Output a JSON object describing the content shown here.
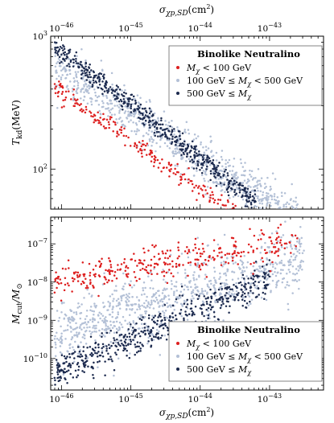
{
  "chart_data": [
    {
      "type": "scatter",
      "panel": "top",
      "title": "",
      "xlabel": "σ_χp,SD(cm²)",
      "xlabel_parts": {
        "main": "σ",
        "sub": "χp,SD",
        "unit": "(cm",
        "sup": "2",
        "close": ")"
      },
      "ylabel": "T_kd(MeV)",
      "ylabel_parts": {
        "main": "T",
        "sub": "kd",
        "unit": "(MeV)"
      },
      "x_scale": "log",
      "y_scale": "log",
      "xlim": [
        7e-47,
        6e-43
      ],
      "ylim": [
        50,
        1000
      ],
      "x_ticks": [
        {
          "value": 1e-46,
          "base": "10",
          "exp": "−46"
        },
        {
          "value": 1e-45,
          "base": "10",
          "exp": "−45"
        },
        {
          "value": 1e-44,
          "base": "10",
          "exp": "−44"
        },
        {
          "value": 1e-43,
          "base": "10",
          "exp": "−43"
        }
      ],
      "y_ticks": [
        {
          "value": 100,
          "base": "10",
          "exp": "2"
        },
        {
          "value": 1000,
          "base": "10",
          "exp": "3"
        }
      ],
      "x_axis_position": "top",
      "legend": {
        "title": "Binolike Neutralino",
        "position": "top-right",
        "entries": [
          {
            "label": "M_χ < 100 GeV",
            "parts": [
              "M",
              "χ",
              " < 100 GeV"
            ],
            "color": "#dd1f1f"
          },
          {
            "label": "100 GeV ≤ M_χ < 500 GeV",
            "parts": [
              "100 GeV ≤ M",
              "χ",
              " < 500 GeV"
            ],
            "color": "#b3c0d6"
          },
          {
            "label": "500 GeV ≤ M_χ",
            "parts": [
              "500 GeV ≤ M",
              "χ",
              ""
            ],
            "color": "#1d2b4f"
          }
        ]
      },
      "series": [
        {
          "name": "M_χ < 100 GeV",
          "color": "#dd1f1f",
          "band": {
            "x_log": [
              -46.1,
              -42.9
            ],
            "center_log": [
              2.62,
              1.45
            ],
            "width_log": 0.07,
            "n": 260
          }
        },
        {
          "name": "100 GeV ≤ M_χ < 500 GeV",
          "color": "#b3c0d6",
          "band": {
            "x_log": [
              -46.1,
              -42.4
            ],
            "center_log": [
              2.77,
              1.55
            ],
            "width_log": 0.17,
            "n": 900
          }
        },
        {
          "name": "500 GeV ≤ M_χ",
          "color": "#1d2b4f",
          "band": {
            "x_log": [
              -46.1,
              -43.2
            ],
            "center_log": [
              2.92,
              1.75
            ],
            "width_log": 0.08,
            "n": 520
          }
        }
      ]
    },
    {
      "type": "scatter",
      "panel": "bottom",
      "title": "",
      "xlabel": "σ_χp,SD(cm²)",
      "xlabel_parts": {
        "main": "σ",
        "sub": "χp,SD",
        "unit": "(cm",
        "sup": "2",
        "close": ")"
      },
      "ylabel": "M_cut/M_⊙",
      "ylabel_parts": {
        "main": "M",
        "sub": "cut",
        "slash": "/M",
        "sub2": "⊙"
      },
      "x_scale": "log",
      "y_scale": "log",
      "xlim": [
        7e-47,
        6e-43
      ],
      "ylim": [
        1.5e-11,
        5e-07
      ],
      "x_ticks": [
        {
          "value": 1e-46,
          "base": "10",
          "exp": "−46"
        },
        {
          "value": 1e-45,
          "base": "10",
          "exp": "−45"
        },
        {
          "value": 1e-44,
          "base": "10",
          "exp": "−44"
        },
        {
          "value": 1e-43,
          "base": "10",
          "exp": "−43"
        }
      ],
      "y_ticks": [
        {
          "value": 1e-10,
          "base": "10",
          "exp": "−10"
        },
        {
          "value": 1e-09,
          "base": "10",
          "exp": "−9"
        },
        {
          "value": 1e-08,
          "base": "10",
          "exp": "−8"
        },
        {
          "value": 1e-07,
          "base": "10",
          "exp": "−7"
        }
      ],
      "x_axis_position": "bottom",
      "legend": {
        "title": "Binolike Neutralino",
        "position": "bottom-right",
        "entries": [
          {
            "label": "M_χ < 100 GeV",
            "parts": [
              "M",
              "χ",
              " < 100 GeV"
            ],
            "color": "#dd1f1f"
          },
          {
            "label": "100 GeV ≤ M_χ < 500 GeV",
            "parts": [
              "100 GeV ≤ M",
              "χ",
              " < 500 GeV"
            ],
            "color": "#b3c0d6"
          },
          {
            "label": "500 GeV ≤ M_χ",
            "parts": [
              "500 GeV ≤ M",
              "χ",
              ""
            ],
            "color": "#1d2b4f"
          }
        ]
      },
      "series": [
        {
          "name": "M_χ < 100 GeV",
          "color": "#dd1f1f",
          "band": {
            "x_log": [
              -46.1,
              -42.6
            ],
            "center_log": [
              -8.0,
              -6.9
            ],
            "width_log": 0.45,
            "n": 330
          }
        },
        {
          "name": "100 GeV ≤ M_χ < 500 GeV",
          "color": "#b3c0d6",
          "band": {
            "x_log": [
              -46.1,
              -42.5
            ],
            "center_log": [
              -9.4,
              -7.4
            ],
            "width_log": 0.9,
            "n": 900
          }
        },
        {
          "name": "500 GeV ≤ M_χ",
          "color": "#1d2b4f",
          "band": {
            "x_log": [
              -46.1,
              -43.0
            ],
            "center_log": [
              -10.4,
              -7.9
            ],
            "width_log": 0.45,
            "n": 520
          }
        }
      ]
    }
  ]
}
